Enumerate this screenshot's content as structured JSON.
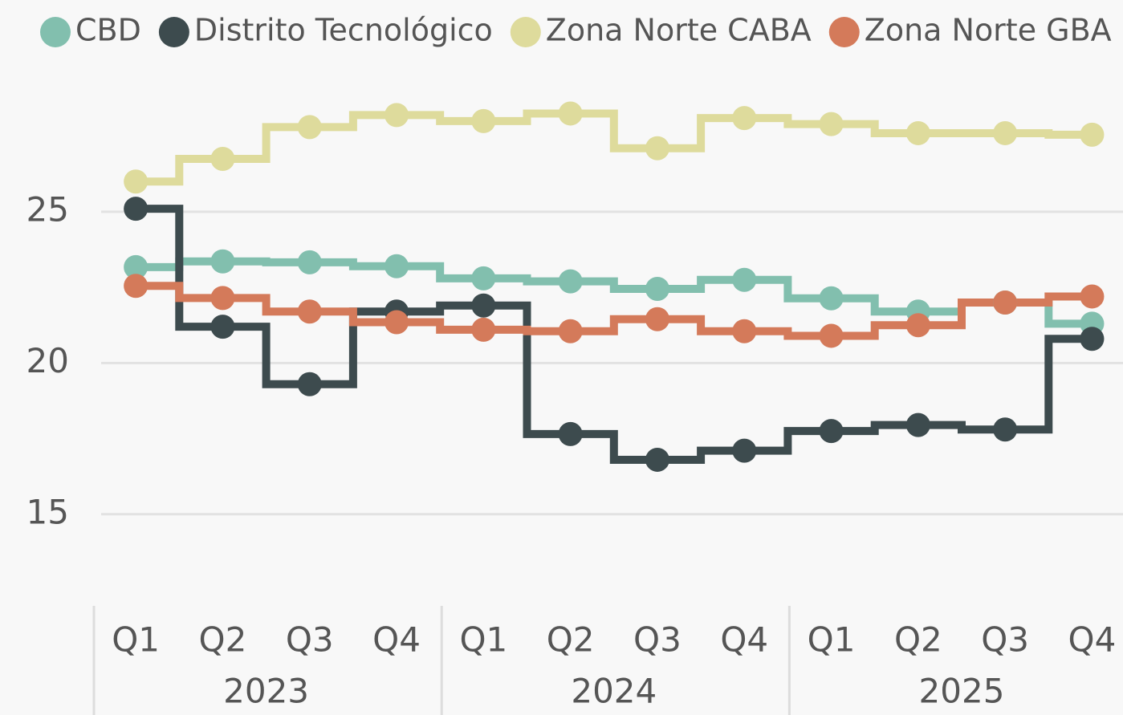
{
  "chart_data": {
    "type": "step",
    "categories": [
      "Q1",
      "Q2",
      "Q3",
      "Q4",
      "Q1",
      "Q2",
      "Q3",
      "Q4",
      "Q1",
      "Q2",
      "Q3",
      "Q4"
    ],
    "groups": [
      "2023",
      "2024",
      "2025"
    ],
    "series": [
      {
        "name": "CBD",
        "color": "#82bfae",
        "values": [
          23.17,
          23.36,
          23.33,
          23.2,
          22.8,
          22.7,
          22.45,
          22.75,
          22.14,
          21.7,
          22.0,
          21.3
        ]
      },
      {
        "name": "Distrito Tecnológico",
        "color": "#3d4b4e",
        "values": [
          25.1,
          21.2,
          19.3,
          21.7,
          21.9,
          17.65,
          16.8,
          17.1,
          17.75,
          17.95,
          17.8,
          20.8
        ]
      },
      {
        "name": "Zona Norte CABA",
        "color": "#dedb9c",
        "values": [
          26.0,
          26.75,
          27.8,
          28.2,
          28.0,
          28.25,
          27.1,
          28.1,
          27.9,
          27.6,
          27.6,
          27.55
        ]
      },
      {
        "name": "Zona Norte GBA",
        "color": "#d47a5a",
        "values": [
          22.55,
          22.15,
          21.7,
          21.35,
          21.1,
          21.05,
          21.45,
          21.05,
          20.9,
          21.25,
          22.0,
          22.2
        ]
      }
    ],
    "ylim": [
      12.5,
      30
    ],
    "yticks": [
      15,
      20,
      25
    ],
    "grid": true,
    "legend": "top"
  }
}
